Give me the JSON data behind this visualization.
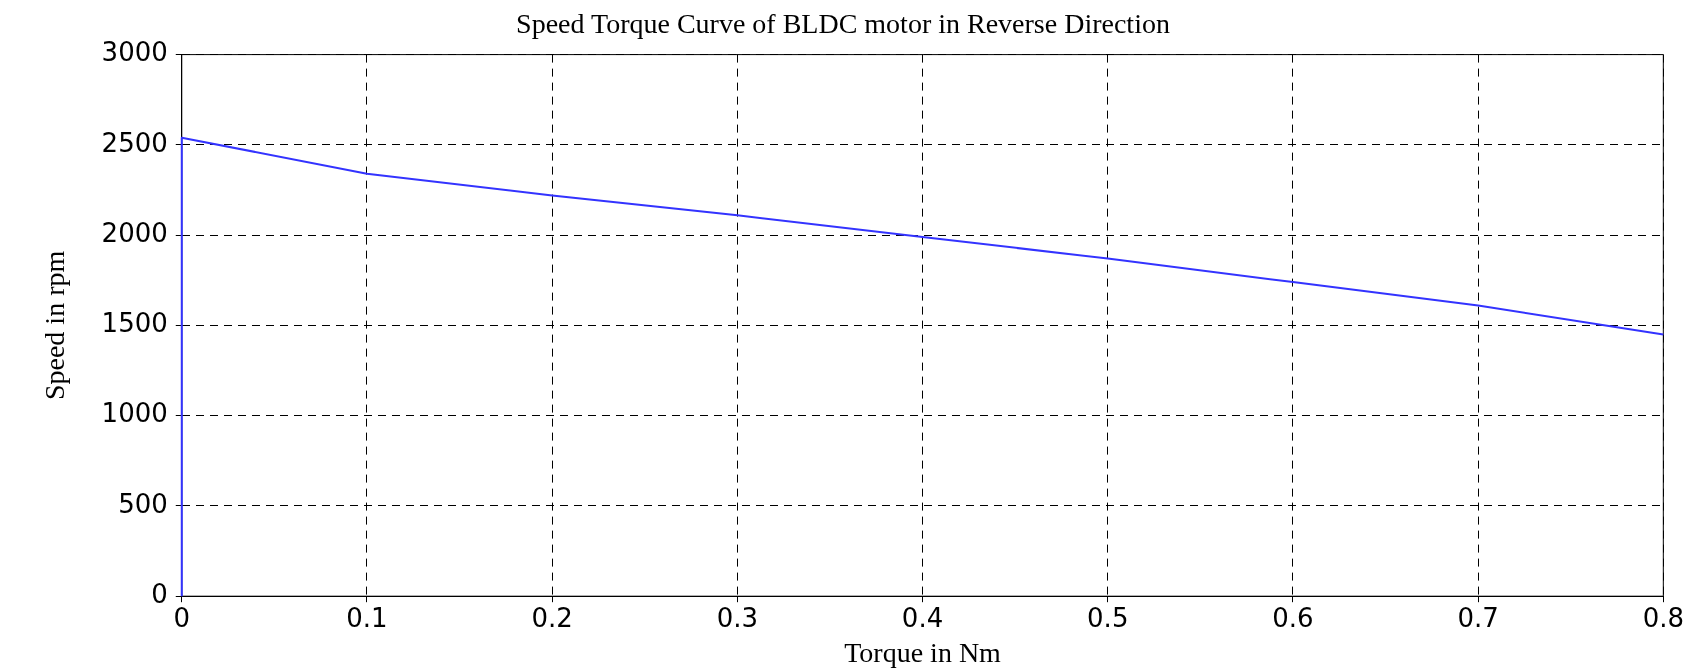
{
  "chart_data": {
    "type": "line",
    "title": "Speed Torque Curve of BLDC motor in Reverse Direction",
    "xlabel": "Torque in Nm",
    "ylabel": "Speed in rpm",
    "x": [
      0,
      0,
      0.1,
      0.2,
      0.3,
      0.4,
      0.5,
      0.6,
      0.7,
      0.8
    ],
    "series": [
      {
        "color": "#3333ff",
        "values": [
          0,
          2540,
          2340,
          2220,
          2110,
          1990,
          1870,
          1740,
          1610,
          1450
        ]
      }
    ],
    "xlim": [
      0,
      0.8
    ],
    "xticks": [
      0,
      0.1,
      0.2,
      0.3,
      0.4,
      0.5,
      0.6,
      0.7,
      0.8
    ],
    "ylim": [
      0,
      3000
    ],
    "yticks": [
      0,
      500,
      1000,
      1500,
      2000,
      2500,
      3000
    ],
    "grid": true,
    "legend": false,
    "marker": "none",
    "line_style": "solid"
  }
}
